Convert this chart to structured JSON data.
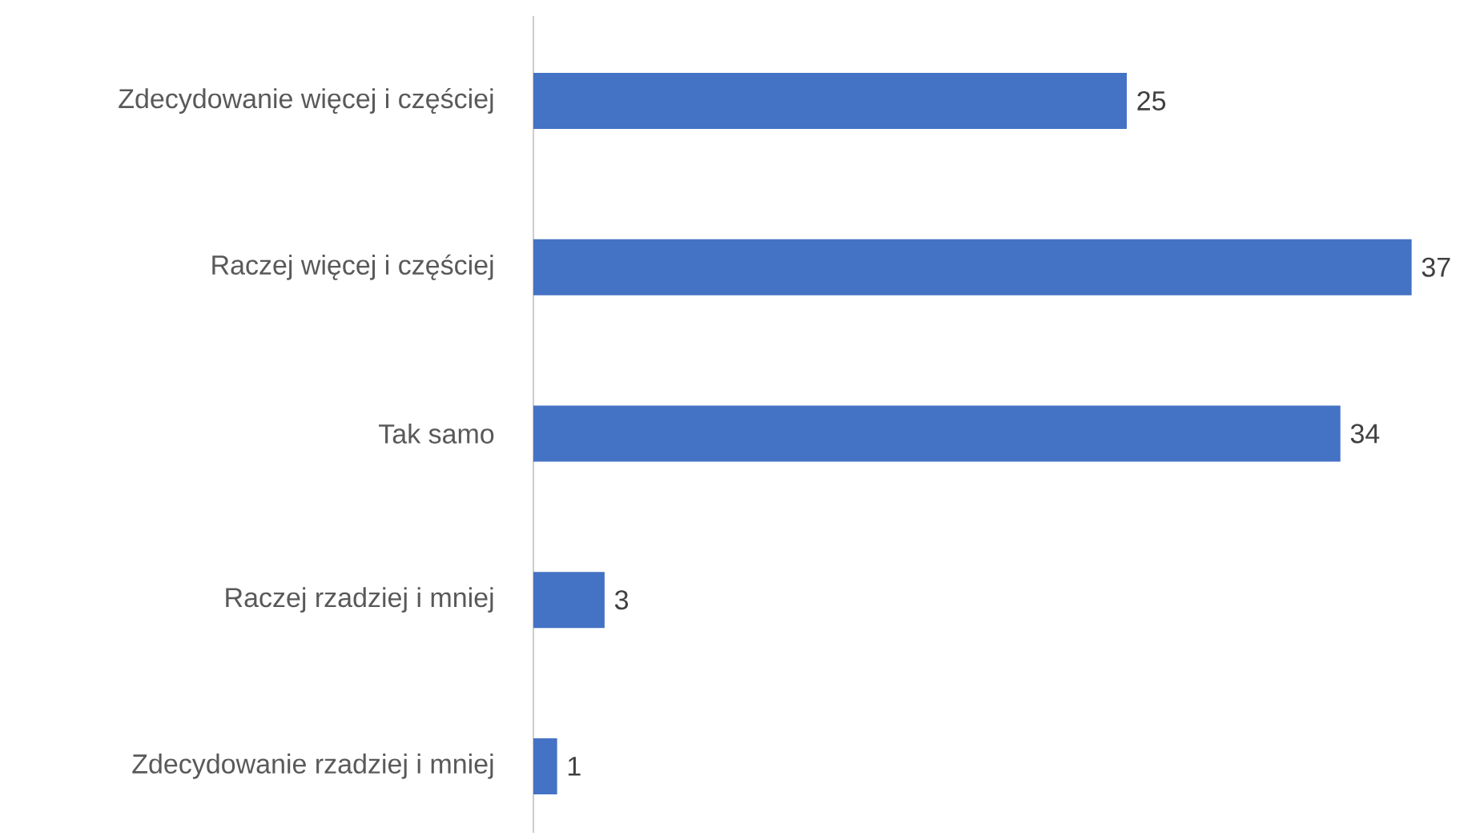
{
  "chart_data": {
    "type": "bar",
    "orientation": "horizontal",
    "categories": [
      "Zdecydowanie więcej i częściej",
      "Raczej więcej i częściej",
      "Tak samo",
      "Raczej rzadziej i mniej",
      "Zdecydowanie rzadziej i mniej"
    ],
    "values": [
      25,
      37,
      34,
      3,
      1
    ],
    "color": "#4472c4",
    "data_labels": true
  }
}
